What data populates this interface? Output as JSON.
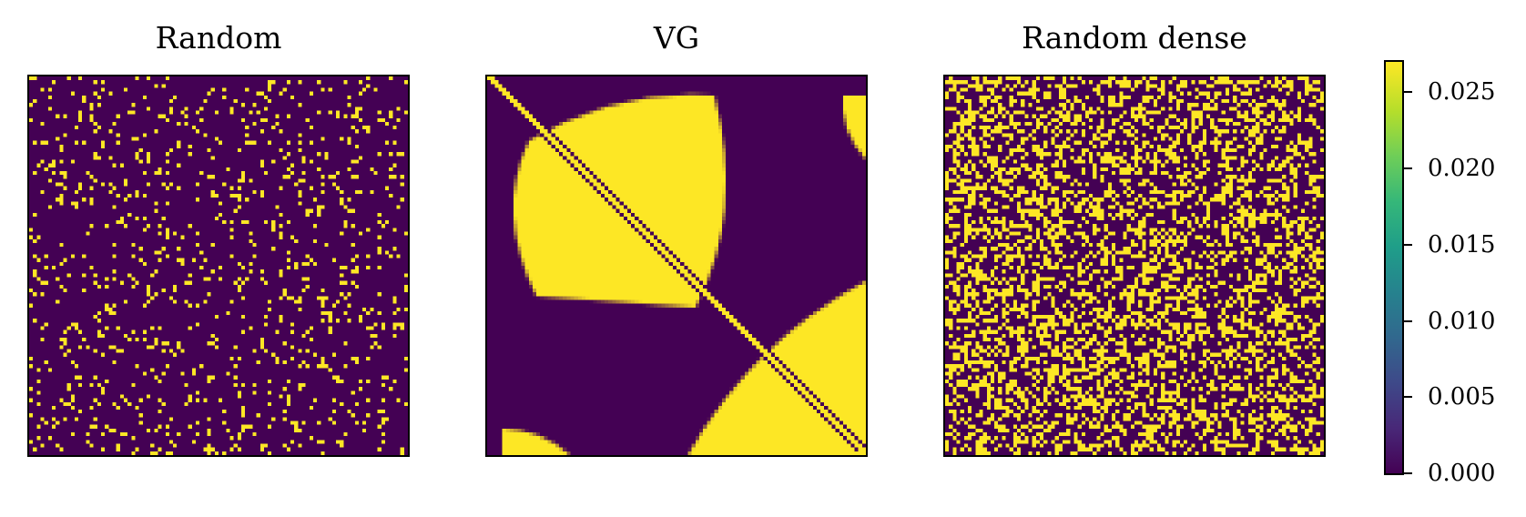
{
  "chart_data": [
    {
      "type": "heatmap",
      "title": "Random",
      "pattern": "sparse random binary",
      "fill_fraction": 0.1,
      "grid_size": [
        100,
        100
      ],
      "xticks": [],
      "yticks": []
    },
    {
      "type": "heatmap",
      "title": "VG",
      "pattern": "visibility graph: main diagonal plus two large wedge-shaped regions (upper-left and lower-right) and small corner regions",
      "grid_size": [
        100,
        100
      ],
      "xticks": [],
      "yticks": []
    },
    {
      "type": "heatmap",
      "title": "Random dense",
      "pattern": "dense random binary",
      "fill_fraction": 0.38,
      "grid_size": [
        100,
        100
      ],
      "xticks": [],
      "yticks": []
    }
  ],
  "colorbar": {
    "colormap": "viridis",
    "min": 0.0,
    "max": 0.027,
    "ticks": [
      "0.000",
      "0.005",
      "0.010",
      "0.015",
      "0.020",
      "0.025"
    ],
    "tick_values": [
      0.0,
      0.005,
      0.01,
      0.015,
      0.02,
      0.025
    ]
  },
  "colors": {
    "low": "#440154",
    "high": "#fde725"
  }
}
